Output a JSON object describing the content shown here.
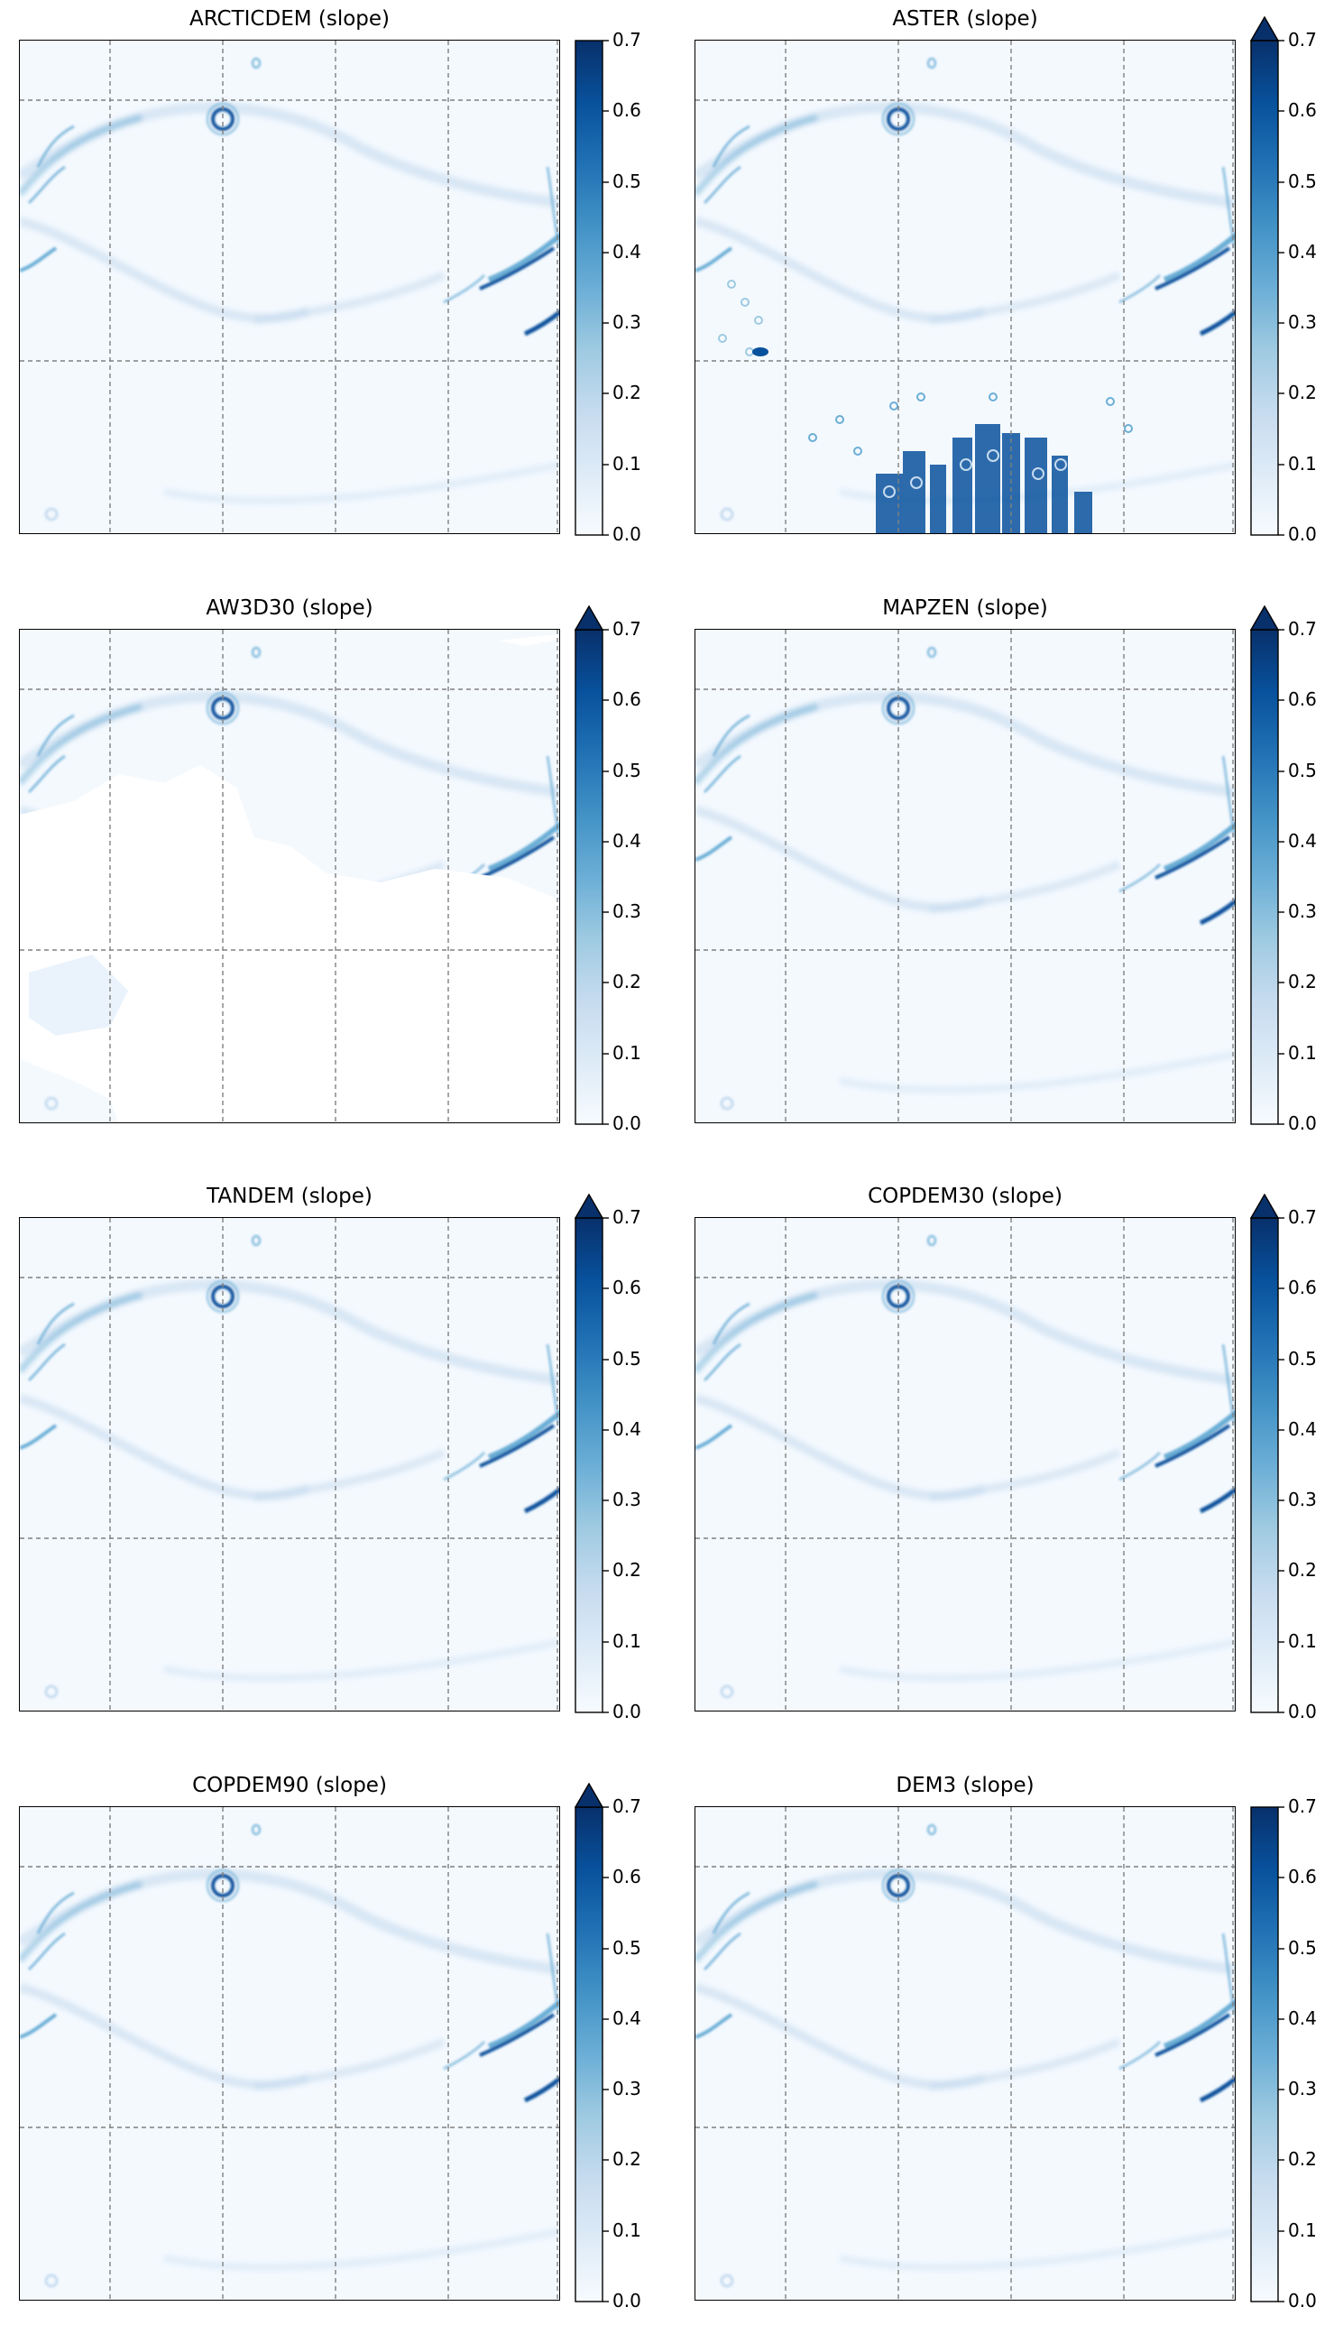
{
  "figure": {
    "cmap": "Blues",
    "gridline_color": "#808080",
    "frame_color": "#000000"
  },
  "chart_data": [
    {
      "type": "heatmap",
      "title": "ARCTICDEM (slope)",
      "colorbar": {
        "min": 0.0,
        "max": 0.7,
        "extend": "neither",
        "ticks": [
          "0.0",
          "0.1",
          "0.2",
          "0.3",
          "0.4",
          "0.5",
          "0.6",
          "0.7"
        ]
      },
      "nodata_regions": false,
      "artifacts": false
    },
    {
      "type": "heatmap",
      "title": "ASTER (slope)",
      "colorbar": {
        "min": 0.0,
        "max": 0.7,
        "extend": "max",
        "ticks": [
          "0.0",
          "0.1",
          "0.2",
          "0.3",
          "0.4",
          "0.5",
          "0.6",
          "0.7"
        ]
      },
      "nodata_regions": false,
      "artifacts": true
    },
    {
      "type": "heatmap",
      "title": "AW3D30 (slope)",
      "colorbar": {
        "min": 0.0,
        "max": 0.7,
        "extend": "max",
        "ticks": [
          "0.0",
          "0.1",
          "0.2",
          "0.3",
          "0.4",
          "0.5",
          "0.6",
          "0.7"
        ]
      },
      "nodata_regions": true,
      "artifacts": false
    },
    {
      "type": "heatmap",
      "title": "MAPZEN (slope)",
      "colorbar": {
        "min": 0.0,
        "max": 0.7,
        "extend": "max",
        "ticks": [
          "0.0",
          "0.1",
          "0.2",
          "0.3",
          "0.4",
          "0.5",
          "0.6",
          "0.7"
        ]
      },
      "nodata_regions": false,
      "artifacts": false
    },
    {
      "type": "heatmap",
      "title": "TANDEM (slope)",
      "colorbar": {
        "min": 0.0,
        "max": 0.7,
        "extend": "max",
        "ticks": [
          "0.0",
          "0.1",
          "0.2",
          "0.3",
          "0.4",
          "0.5",
          "0.6",
          "0.7"
        ]
      },
      "nodata_regions": false,
      "artifacts": false
    },
    {
      "type": "heatmap",
      "title": "COPDEM30 (slope)",
      "colorbar": {
        "min": 0.0,
        "max": 0.7,
        "extend": "max",
        "ticks": [
          "0.0",
          "0.1",
          "0.2",
          "0.3",
          "0.4",
          "0.5",
          "0.6",
          "0.7"
        ]
      },
      "nodata_regions": false,
      "artifacts": false
    },
    {
      "type": "heatmap",
      "title": "COPDEM90 (slope)",
      "colorbar": {
        "min": 0.0,
        "max": 0.7,
        "extend": "max",
        "ticks": [
          "0.0",
          "0.1",
          "0.2",
          "0.3",
          "0.4",
          "0.5",
          "0.6",
          "0.7"
        ]
      },
      "nodata_regions": false,
      "artifacts": false
    },
    {
      "type": "heatmap",
      "title": "DEM3 (slope)",
      "colorbar": {
        "min": 0.0,
        "max": 0.7,
        "extend": "neither",
        "ticks": [
          "0.0",
          "0.1",
          "0.2",
          "0.3",
          "0.4",
          "0.5",
          "0.6",
          "0.7"
        ]
      },
      "nodata_regions": false,
      "artifacts": false
    }
  ]
}
